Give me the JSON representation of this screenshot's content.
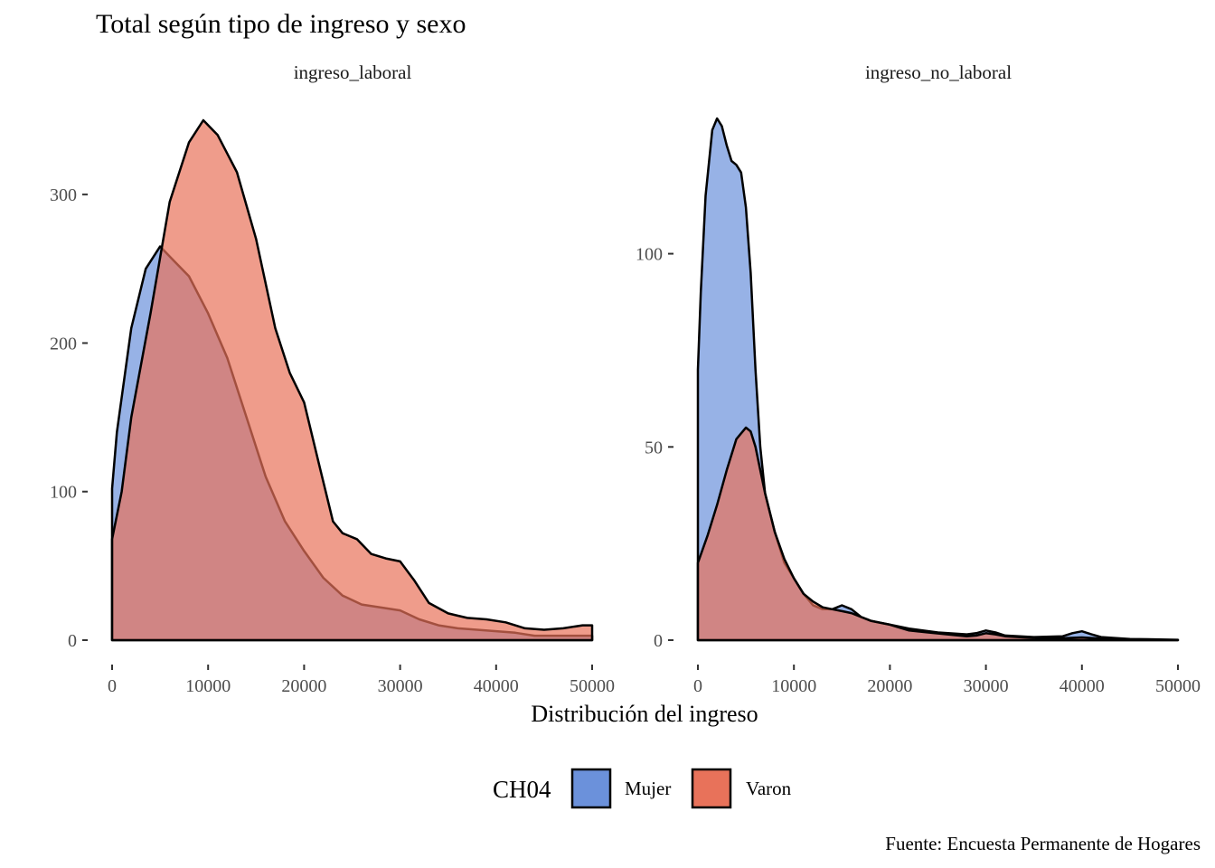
{
  "chart_data": {
    "type": "area",
    "subtype": "density",
    "title": "Total según tipo de ingreso y sexo",
    "xlabel": "Distribución del ingreso",
    "ylabel": "",
    "caption": "Fuente: Encuesta Permanente de Hogares",
    "legend": {
      "title": "CH04",
      "position": "bottom",
      "items": [
        {
          "name": "Mujer",
          "color": "#6B91DB"
        },
        {
          "name": "Varon",
          "color": "#E8725A"
        }
      ]
    },
    "overlap_color": "#BC544F",
    "grid": false,
    "panels": [
      {
        "facet": "ingreso_laboral",
        "xlim": [
          0,
          50000
        ],
        "ylim": [
          0,
          350
        ],
        "x_ticks": [
          "0",
          "10000",
          "20000",
          "30000",
          "40000",
          "50000"
        ],
        "y_ticks": [
          {
            "value": 0,
            "label": "0"
          },
          {
            "value": 100,
            "label": "100"
          },
          {
            "value": 200,
            "label": "200"
          },
          {
            "value": 300,
            "label": "300"
          }
        ],
        "series": [
          {
            "name": "Mujer",
            "x": [
              0,
              500,
              2000,
              3500,
              5000,
              6500,
              8000,
              10000,
              12000,
              14000,
              16000,
              18000,
              20000,
              22000,
              24000,
              26000,
              28000,
              30000,
              32000,
              34000,
              36000,
              38000,
              40000,
              42000,
              44000,
              46000,
              48000,
              50000
            ],
            "y": [
              102,
              140,
              210,
              250,
              265,
              255,
              245,
              220,
              190,
              150,
              110,
              80,
              60,
              42,
              30,
              24,
              22,
              20,
              14,
              10,
              8,
              7,
              6,
              5,
              3,
              3,
              3,
              3
            ]
          },
          {
            "name": "Varon",
            "x": [
              0,
              1000,
              2000,
              4000,
              6000,
              8000,
              9500,
              11000,
              13000,
              15000,
              17000,
              18500,
              20000,
              21500,
              23000,
              24000,
              25500,
              27000,
              28500,
              30000,
              31500,
              33000,
              35000,
              37000,
              39000,
              41000,
              43000,
              45000,
              47000,
              49000,
              50000
            ],
            "y": [
              68,
              100,
              150,
              220,
              295,
              335,
              350,
              340,
              315,
              270,
              210,
              180,
              160,
              120,
              80,
              72,
              68,
              58,
              55,
              53,
              40,
              25,
              18,
              15,
              14,
              12,
              8,
              7,
              8,
              10,
              10
            ]
          }
        ]
      },
      {
        "facet": "ingreso_no_laboral",
        "xlim": [
          0,
          50000
        ],
        "ylim": [
          0,
          135
        ],
        "x_ticks": [
          "0",
          "10000",
          "20000",
          "30000",
          "40000",
          "50000"
        ],
        "y_ticks": [
          {
            "value": 0,
            "label": "0"
          },
          {
            "value": 50,
            "label": "50"
          },
          {
            "value": 100,
            "label": "100"
          }
        ],
        "series": [
          {
            "name": "Mujer",
            "x": [
              0,
              300,
              800,
              1500,
              2000,
              2500,
              3000,
              3500,
              4000,
              4500,
              5000,
              5500,
              6000,
              6500,
              7000,
              8000,
              9000,
              10000,
              11000,
              12000,
              13000,
              14000,
              15000,
              16000,
              17000,
              18000,
              20000,
              22000,
              25000,
              28000,
              29000,
              30000,
              31000,
              32000,
              35000,
              38000,
              39000,
              40000,
              41000,
              42000,
              45000,
              50000
            ],
            "y": [
              70,
              90,
              115,
              132,
              135,
              133,
              128,
              124,
              123,
              121,
              112,
              95,
              70,
              50,
              38,
              28,
              20,
              16,
              12,
              9,
              8,
              8,
              9,
              8,
              6,
              5,
              4,
              3,
              2,
              1.5,
              1.8,
              2.5,
              2,
              1.2,
              0.8,
              1,
              1.8,
              2.3,
              1.5,
              0.8,
              0.3,
              0.1
            ]
          },
          {
            "name": "Varon",
            "x": [
              0,
              1000,
              2000,
              3000,
              4000,
              5000,
              5500,
              6000,
              7000,
              8000,
              9000,
              10000,
              11000,
              12000,
              13000,
              14000,
              15000,
              16000,
              17000,
              18000,
              19000,
              20000,
              22000,
              24000,
              26000,
              28000,
              29000,
              30000,
              31000,
              32000,
              34000,
              36000,
              38000,
              40000,
              42000,
              45000,
              50000
            ],
            "y": [
              20,
              27,
              35,
              44,
              52,
              55,
              54,
              50,
              38,
              28,
              21,
              16,
              12,
              10,
              8.5,
              8,
              7.5,
              7,
              6,
              5,
              4.5,
              4,
              2.5,
              2,
              1.5,
              1,
              1.2,
              1.8,
              1.5,
              1,
              0.7,
              0.5,
              0.5,
              0.7,
              0.4,
              0.2,
              0
            ]
          }
        ]
      }
    ]
  }
}
